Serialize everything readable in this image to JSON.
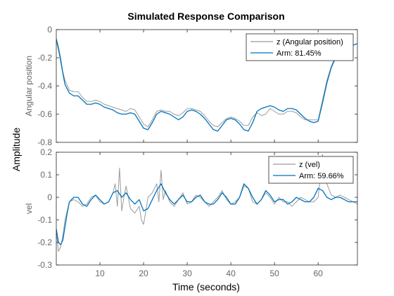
{
  "figure": {
    "title": "Simulated Response Comparison",
    "ylabel": "Amplitude",
    "xlabel": "Time (seconds)"
  },
  "colors": {
    "measured": "#9b9b9b",
    "model": "#0072bd",
    "axis": "#666666",
    "frame": "#262626"
  },
  "chart_data": [
    {
      "type": "line",
      "ylabel": "Angular position",
      "xlim": [
        0,
        69
      ],
      "ylim": [
        -0.8,
        0
      ],
      "xticks": [
        10,
        20,
        30,
        40,
        50,
        60
      ],
      "yticks": [
        0,
        -0.2,
        -0.4,
        -0.6,
        -0.8
      ],
      "ytick_labels": [
        "0",
        "-0.2",
        "-0.4",
        "-0.6",
        "-0.8"
      ],
      "legend": {
        "placement": "top-right"
      },
      "series": [
        {
          "name": "z (Angular position)",
          "color": "#9b9b9b",
          "x": [
            0,
            0.5,
            1,
            1.5,
            2,
            3,
            4,
            5,
            6,
            7,
            8,
            9,
            10,
            11,
            12,
            13,
            14,
            15,
            16,
            17,
            18,
            19,
            20,
            21,
            22,
            23,
            24,
            25,
            26,
            27,
            28,
            29,
            30,
            31,
            32,
            33,
            34,
            35,
            36,
            37,
            38,
            39,
            40,
            41,
            42,
            43,
            44,
            45,
            46,
            47,
            48,
            49,
            50,
            51,
            52,
            53,
            54,
            55,
            56,
            57,
            58,
            59,
            60,
            61,
            62,
            63,
            64,
            65,
            66,
            67,
            68,
            69
          ],
          "y": [
            -0.06,
            -0.12,
            -0.2,
            -0.3,
            -0.36,
            -0.43,
            -0.44,
            -0.44,
            -0.48,
            -0.51,
            -0.51,
            -0.5,
            -0.51,
            -0.53,
            -0.54,
            -0.55,
            -0.56,
            -0.57,
            -0.58,
            -0.56,
            -0.57,
            -0.62,
            -0.67,
            -0.69,
            -0.64,
            -0.58,
            -0.57,
            -0.58,
            -0.58,
            -0.6,
            -0.61,
            -0.59,
            -0.56,
            -0.56,
            -0.57,
            -0.58,
            -0.61,
            -0.65,
            -0.68,
            -0.69,
            -0.66,
            -0.63,
            -0.62,
            -0.63,
            -0.65,
            -0.68,
            -0.68,
            -0.62,
            -0.59,
            -0.61,
            -0.6,
            -0.56,
            -0.58,
            -0.6,
            -0.6,
            -0.58,
            -0.58,
            -0.59,
            -0.62,
            -0.64,
            -0.64,
            -0.64,
            -0.64,
            -0.5,
            -0.36,
            -0.26,
            -0.19,
            -0.14,
            -0.12,
            -0.12,
            -0.11,
            -0.1
          ]
        },
        {
          "name": "Arm: 81.45%",
          "color": "#0072bd",
          "x": [
            0,
            0.5,
            1,
            1.5,
            2,
            3,
            4,
            5,
            6,
            7,
            8,
            9,
            10,
            11,
            12,
            13,
            14,
            15,
            16,
            17,
            18,
            19,
            20,
            21,
            22,
            23,
            24,
            25,
            26,
            27,
            28,
            29,
            30,
            31,
            32,
            33,
            34,
            35,
            36,
            37,
            38,
            39,
            40,
            41,
            42,
            43,
            44,
            45,
            46,
            47,
            48,
            49,
            50,
            51,
            52,
            53,
            54,
            55,
            56,
            57,
            58,
            59,
            60,
            61,
            62,
            63,
            64,
            65,
            66,
            67,
            68,
            69
          ],
          "y": [
            -0.07,
            -0.14,
            -0.22,
            -0.31,
            -0.39,
            -0.45,
            -0.47,
            -0.47,
            -0.5,
            -0.53,
            -0.53,
            -0.52,
            -0.53,
            -0.55,
            -0.56,
            -0.57,
            -0.59,
            -0.6,
            -0.6,
            -0.59,
            -0.6,
            -0.65,
            -0.7,
            -0.71,
            -0.66,
            -0.6,
            -0.58,
            -0.59,
            -0.6,
            -0.62,
            -0.64,
            -0.62,
            -0.58,
            -0.57,
            -0.58,
            -0.6,
            -0.63,
            -0.67,
            -0.71,
            -0.72,
            -0.68,
            -0.64,
            -0.63,
            -0.64,
            -0.67,
            -0.71,
            -0.72,
            -0.66,
            -0.58,
            -0.56,
            -0.55,
            -0.54,
            -0.55,
            -0.57,
            -0.58,
            -0.56,
            -0.56,
            -0.57,
            -0.6,
            -0.63,
            -0.65,
            -0.66,
            -0.65,
            -0.52,
            -0.38,
            -0.27,
            -0.2,
            -0.16,
            -0.13,
            -0.12,
            -0.11,
            -0.1
          ]
        }
      ]
    },
    {
      "type": "line",
      "ylabel": "vel",
      "xlim": [
        0,
        69
      ],
      "ylim": [
        -0.3,
        0.2
      ],
      "xticks": [
        10,
        20,
        30,
        40,
        50,
        60
      ],
      "yticks": [
        0.2,
        0.1,
        0,
        -0.1,
        -0.2,
        -0.3
      ],
      "ytick_labels": [
        "0.2",
        "0.1",
        "0",
        "-0.1",
        "-0.2",
        "-0.3"
      ],
      "legend": {
        "placement": "top-right"
      },
      "series": [
        {
          "name": "z (vel)",
          "color": "#9b9b9b",
          "x": [
            0,
            0.5,
            1,
            1.5,
            2,
            2.5,
            3,
            4,
            5,
            6,
            7,
            8,
            9,
            10,
            11,
            12,
            13,
            13.5,
            14,
            14.5,
            15,
            15.5,
            16,
            16.5,
            17,
            18,
            19,
            19.5,
            20,
            20.5,
            21,
            22,
            23,
            23.5,
            24,
            24.5,
            25,
            26,
            27,
            28,
            29,
            30,
            31,
            32,
            33,
            34,
            35,
            36,
            37,
            38,
            39,
            40,
            41,
            42,
            43,
            44,
            45,
            46,
            47,
            48,
            49,
            50,
            51,
            52,
            53,
            54,
            55,
            56,
            57,
            58,
            59,
            60,
            61,
            62,
            63,
            64,
            65,
            66,
            67,
            68,
            69
          ],
          "y": [
            -0.15,
            -0.24,
            -0.22,
            -0.17,
            -0.1,
            -0.06,
            -0.02,
            -0.01,
            -0.02,
            -0.04,
            -0.03,
            0.0,
            0.01,
            -0.02,
            -0.03,
            -0.02,
            0.02,
            0.06,
            -0.04,
            0.13,
            -0.06,
            0.0,
            0.05,
            0.0,
            -0.05,
            -0.07,
            -0.04,
            -0.1,
            -0.12,
            -0.06,
            0.0,
            0.02,
            0.06,
            -0.02,
            0.12,
            -0.01,
            0.03,
            -0.02,
            -0.04,
            -0.01,
            0.02,
            -0.03,
            -0.02,
            0.01,
            0.0,
            -0.02,
            -0.04,
            -0.02,
            0.0,
            0.03,
            -0.01,
            -0.03,
            -0.02,
            0.0,
            0.05,
            0.04,
            -0.02,
            -0.03,
            -0.01,
            0.02,
            0.0,
            -0.03,
            0.0,
            -0.02,
            -0.02,
            -0.04,
            -0.02,
            0.0,
            -0.01,
            -0.02,
            -0.02,
            0.0,
            0.19,
            0.06,
            0.01,
            0.0,
            0.01,
            0.0,
            -0.01,
            -0.02,
            -0.03
          ]
        },
        {
          "name": "Arm: 59.66%",
          "color": "#0072bd",
          "x": [
            0,
            0.5,
            1,
            1.5,
            2,
            2.5,
            3,
            4,
            5,
            6,
            7,
            8,
            9,
            10,
            11,
            12,
            13,
            14,
            15,
            16,
            17,
            18,
            19,
            20,
            21,
            22,
            23,
            24,
            25,
            26,
            27,
            28,
            29,
            30,
            31,
            32,
            33,
            34,
            35,
            36,
            37,
            38,
            39,
            40,
            41,
            42,
            43,
            44,
            45,
            46,
            47,
            48,
            49,
            50,
            51,
            52,
            53,
            54,
            55,
            56,
            57,
            58,
            59,
            60,
            61,
            62,
            63,
            64,
            65,
            66,
            67,
            68,
            69
          ],
          "y": [
            -0.14,
            -0.2,
            -0.21,
            -0.19,
            -0.13,
            -0.07,
            -0.02,
            0.0,
            0.0,
            -0.03,
            -0.04,
            -0.01,
            0.01,
            -0.01,
            -0.03,
            -0.02,
            0.02,
            0.03,
            0.0,
            0.02,
            -0.01,
            -0.03,
            -0.01,
            -0.06,
            -0.05,
            -0.01,
            0.03,
            0.06,
            0.02,
            -0.01,
            -0.03,
            -0.01,
            0.01,
            -0.02,
            -0.02,
            0.0,
            0.01,
            -0.02,
            -0.03,
            -0.03,
            -0.01,
            0.02,
            0.0,
            -0.03,
            -0.03,
            0.0,
            0.06,
            0.04,
            0.0,
            -0.03,
            -0.01,
            0.03,
            0.01,
            -0.02,
            -0.01,
            -0.01,
            -0.03,
            -0.02,
            0.0,
            -0.01,
            -0.02,
            -0.02,
            0.0,
            0.04,
            0.03,
            0.0,
            -0.01,
            0.0,
            0.0,
            -0.01,
            -0.02,
            -0.02,
            -0.02
          ]
        }
      ]
    }
  ]
}
